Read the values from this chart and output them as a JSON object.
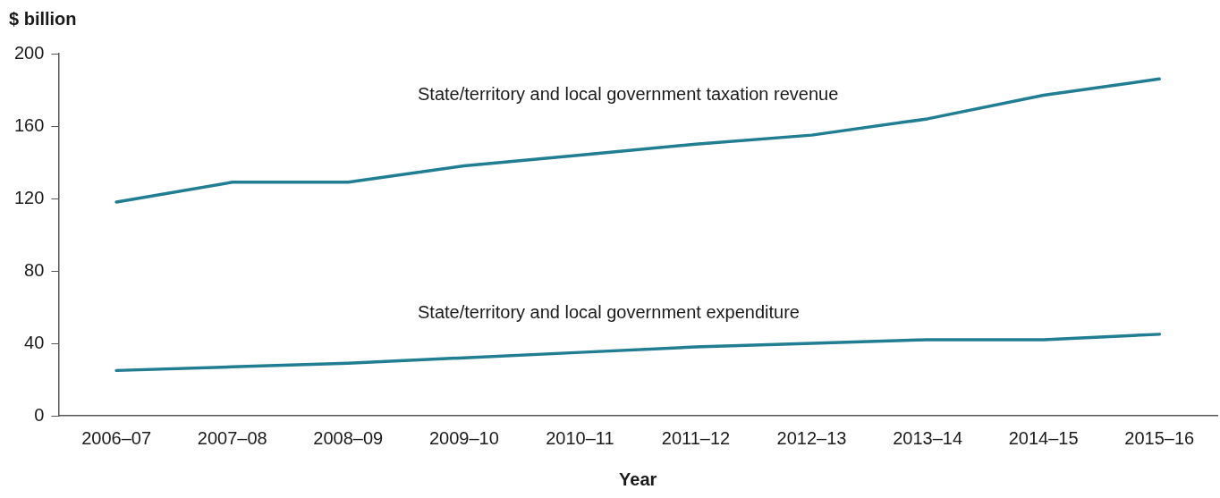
{
  "chart_data": {
    "type": "line",
    "ylabel": "$ billion",
    "xlabel": "Year",
    "categories": [
      "2006–07",
      "2007–08",
      "2008–09",
      "2009–10",
      "2010–11",
      "2011–12",
      "2012–13",
      "2013–14",
      "2014–15",
      "2015–16"
    ],
    "series": [
      {
        "name": "State/territory and local government taxation revenue",
        "color": "#217d92",
        "values": [
          118,
          129,
          129,
          138,
          144,
          150,
          155,
          164,
          177,
          186
        ]
      },
      {
        "name": "State/territory and local government expenditure",
        "color": "#217d92",
        "values": [
          25,
          27,
          29,
          32,
          35,
          38,
          40,
          42,
          42,
          45
        ]
      }
    ],
    "ylim": [
      0,
      200
    ],
    "yticks": [
      0,
      40,
      80,
      120,
      160,
      200
    ],
    "grid": false,
    "legend": false,
    "marker": "none",
    "line_style": "solid"
  }
}
